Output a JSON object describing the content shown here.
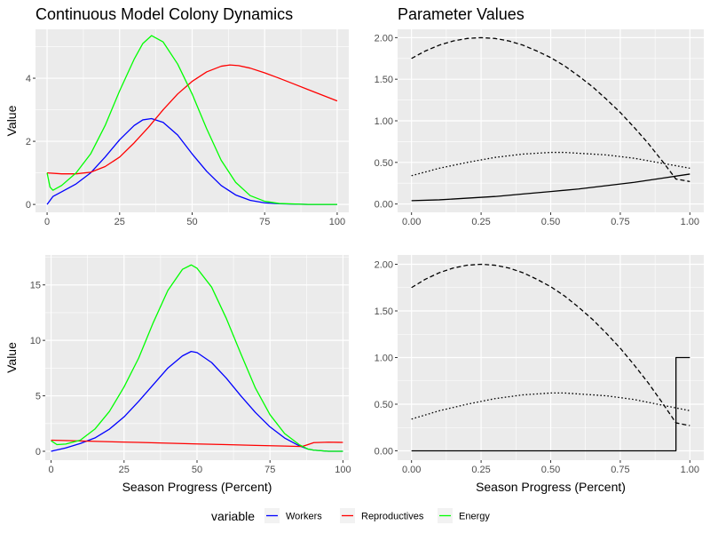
{
  "figure": {
    "legend": {
      "title": "variable",
      "entries": [
        {
          "name": "Workers",
          "color": "#0000FF"
        },
        {
          "name": "Reproductives",
          "color": "#FF0000"
        },
        {
          "name": "Energy",
          "color": "#00FF00"
        }
      ],
      "placement": "bottom"
    },
    "panel_background": "#EBEBEB",
    "grid_color": "#FFFFFF"
  },
  "chart_data": [
    {
      "type": "line",
      "title": "Continuous Model Colony Dynamics",
      "xlabel": "",
      "ylabel": "Value",
      "xlim": [
        -4,
        104
      ],
      "ylim": [
        -0.25,
        5.55
      ],
      "xticks": [
        0,
        25,
        50,
        75,
        100
      ],
      "yticks": [
        0,
        2,
        4
      ],
      "grid": true,
      "series": [
        {
          "name": "Workers",
          "color": "#0000FF",
          "dash": "solid",
          "x": [
            0,
            2,
            5,
            10,
            15,
            20,
            25,
            30,
            33,
            36,
            40,
            45,
            50,
            55,
            60,
            65,
            70,
            75,
            80,
            90,
            100
          ],
          "y": [
            0.0,
            0.25,
            0.4,
            0.65,
            1.0,
            1.5,
            2.05,
            2.5,
            2.68,
            2.72,
            2.6,
            2.2,
            1.6,
            1.05,
            0.6,
            0.3,
            0.13,
            0.05,
            0.02,
            0.0,
            0.0
          ]
        },
        {
          "name": "Reproductives",
          "color": "#FF0000",
          "dash": "solid",
          "x": [
            0,
            5,
            10,
            15,
            20,
            25,
            30,
            35,
            40,
            45,
            50,
            55,
            60,
            63,
            66,
            70,
            75,
            80,
            85,
            90,
            95,
            100
          ],
          "y": [
            1.0,
            0.97,
            0.97,
            1.02,
            1.2,
            1.5,
            1.95,
            2.45,
            3.0,
            3.5,
            3.9,
            4.2,
            4.38,
            4.42,
            4.4,
            4.32,
            4.17,
            4.0,
            3.82,
            3.64,
            3.46,
            3.28
          ]
        },
        {
          "name": "Energy",
          "color": "#00FF00",
          "dash": "solid",
          "x": [
            0,
            1,
            2,
            5,
            10,
            15,
            20,
            25,
            30,
            33,
            36,
            40,
            45,
            50,
            55,
            60,
            65,
            70,
            75,
            80,
            90,
            100
          ],
          "y": [
            1.0,
            0.55,
            0.45,
            0.6,
            1.0,
            1.6,
            2.5,
            3.6,
            4.6,
            5.1,
            5.35,
            5.15,
            4.45,
            3.5,
            2.4,
            1.4,
            0.7,
            0.28,
            0.1,
            0.03,
            0.0,
            0.0
          ]
        }
      ]
    },
    {
      "type": "line",
      "title": "Parameter Values",
      "xlabel": "",
      "ylabel": "",
      "xlim": [
        -0.05,
        1.05
      ],
      "ylim": [
        -0.1,
        2.1
      ],
      "xticks": [
        0.0,
        0.25,
        0.5,
        0.75,
        1.0
      ],
      "yticks": [
        0.0,
        0.5,
        1.0,
        1.5,
        2.0
      ],
      "grid": true,
      "series": [
        {
          "dash": "dashed",
          "color": "#000000",
          "x": [
            0,
            0.05,
            0.1,
            0.15,
            0.2,
            0.25,
            0.3,
            0.35,
            0.4,
            0.45,
            0.5,
            0.55,
            0.6,
            0.65,
            0.7,
            0.75,
            0.8,
            0.85,
            0.9,
            0.95,
            1.0
          ],
          "y": [
            1.75,
            1.84,
            1.91,
            1.96,
            1.99,
            2.0,
            1.99,
            1.96,
            1.91,
            1.84,
            1.76,
            1.66,
            1.54,
            1.41,
            1.26,
            1.1,
            0.92,
            0.73,
            0.52,
            0.3,
            0.27
          ]
        },
        {
          "dash": "dotted",
          "color": "#000000",
          "x": [
            0,
            0.1,
            0.2,
            0.3,
            0.4,
            0.5,
            0.55,
            0.6,
            0.7,
            0.8,
            0.9,
            1.0
          ],
          "y": [
            0.34,
            0.43,
            0.5,
            0.56,
            0.6,
            0.62,
            0.62,
            0.61,
            0.59,
            0.55,
            0.49,
            0.43
          ]
        },
        {
          "dash": "solid",
          "color": "#000000",
          "x": [
            0,
            0.1,
            0.2,
            0.3,
            0.4,
            0.5,
            0.6,
            0.7,
            0.8,
            0.9,
            1.0
          ],
          "y": [
            0.04,
            0.05,
            0.07,
            0.09,
            0.12,
            0.15,
            0.18,
            0.22,
            0.26,
            0.31,
            0.36
          ]
        }
      ]
    },
    {
      "type": "line",
      "title": "",
      "xlabel": "Season Progress (Percent)",
      "ylabel": "Value",
      "xlim": [
        -2,
        102
      ],
      "ylim": [
        -0.8,
        17.7
      ],
      "xticks": [
        0,
        25,
        50,
        75,
        100
      ],
      "yticks": [
        0,
        5,
        10,
        15
      ],
      "grid": true,
      "series": [
        {
          "name": "Workers",
          "color": "#0000FF",
          "dash": "solid",
          "x": [
            0,
            5,
            10,
            15,
            20,
            25,
            30,
            35,
            40,
            45,
            48,
            50,
            55,
            60,
            65,
            70,
            75,
            80,
            85,
            88,
            90,
            95,
            100
          ],
          "y": [
            0.0,
            0.3,
            0.7,
            1.2,
            2.0,
            3.1,
            4.5,
            6.0,
            7.5,
            8.6,
            9.0,
            8.9,
            8.0,
            6.6,
            5.0,
            3.5,
            2.2,
            1.2,
            0.5,
            0.2,
            0.1,
            0.0,
            0.0
          ]
        },
        {
          "name": "Reproductives",
          "color": "#FF0000",
          "dash": "solid",
          "x": [
            0,
            10,
            20,
            30,
            40,
            50,
            60,
            70,
            80,
            86,
            88,
            90,
            95,
            100
          ],
          "y": [
            1.0,
            0.93,
            0.86,
            0.8,
            0.73,
            0.66,
            0.6,
            0.53,
            0.47,
            0.43,
            0.6,
            0.78,
            0.82,
            0.8
          ]
        },
        {
          "name": "Energy",
          "color": "#00FF00",
          "dash": "solid",
          "x": [
            0,
            2,
            5,
            10,
            15,
            20,
            25,
            30,
            35,
            40,
            45,
            48,
            50,
            55,
            60,
            65,
            70,
            75,
            80,
            85,
            88,
            90,
            95,
            100
          ],
          "y": [
            0.95,
            0.6,
            0.65,
            1.0,
            2.0,
            3.6,
            5.8,
            8.4,
            11.6,
            14.5,
            16.4,
            16.8,
            16.5,
            14.8,
            12.0,
            8.8,
            5.7,
            3.3,
            1.6,
            0.6,
            0.2,
            0.1,
            0.0,
            0.0
          ]
        }
      ]
    },
    {
      "type": "line",
      "title": "",
      "xlabel": "Season Progress (Percent)",
      "ylabel": "",
      "xlim": [
        -0.05,
        1.05
      ],
      "ylim": [
        -0.1,
        2.1
      ],
      "xticks": [
        0.0,
        0.25,
        0.5,
        0.75,
        1.0
      ],
      "yticks": [
        0.0,
        0.5,
        1.0,
        1.5,
        2.0
      ],
      "grid": true,
      "series": [
        {
          "dash": "dashed",
          "color": "#000000",
          "x": [
            0,
            0.05,
            0.1,
            0.15,
            0.2,
            0.25,
            0.3,
            0.35,
            0.4,
            0.45,
            0.5,
            0.55,
            0.6,
            0.65,
            0.7,
            0.75,
            0.8,
            0.85,
            0.9,
            0.95,
            1.0
          ],
          "y": [
            1.75,
            1.84,
            1.91,
            1.96,
            1.99,
            2.0,
            1.99,
            1.96,
            1.91,
            1.84,
            1.76,
            1.66,
            1.54,
            1.41,
            1.26,
            1.1,
            0.92,
            0.73,
            0.52,
            0.3,
            0.27
          ]
        },
        {
          "dash": "dotted",
          "color": "#000000",
          "x": [
            0,
            0.1,
            0.2,
            0.3,
            0.4,
            0.5,
            0.55,
            0.6,
            0.7,
            0.8,
            0.9,
            1.0
          ],
          "y": [
            0.34,
            0.43,
            0.5,
            0.56,
            0.6,
            0.62,
            0.62,
            0.61,
            0.59,
            0.55,
            0.49,
            0.43
          ]
        },
        {
          "dash": "solid",
          "color": "#000000",
          "x": [
            0,
            0.95,
            0.95,
            1.0
          ],
          "y": [
            0.0,
            0.0,
            1.0,
            1.0
          ]
        }
      ]
    }
  ]
}
